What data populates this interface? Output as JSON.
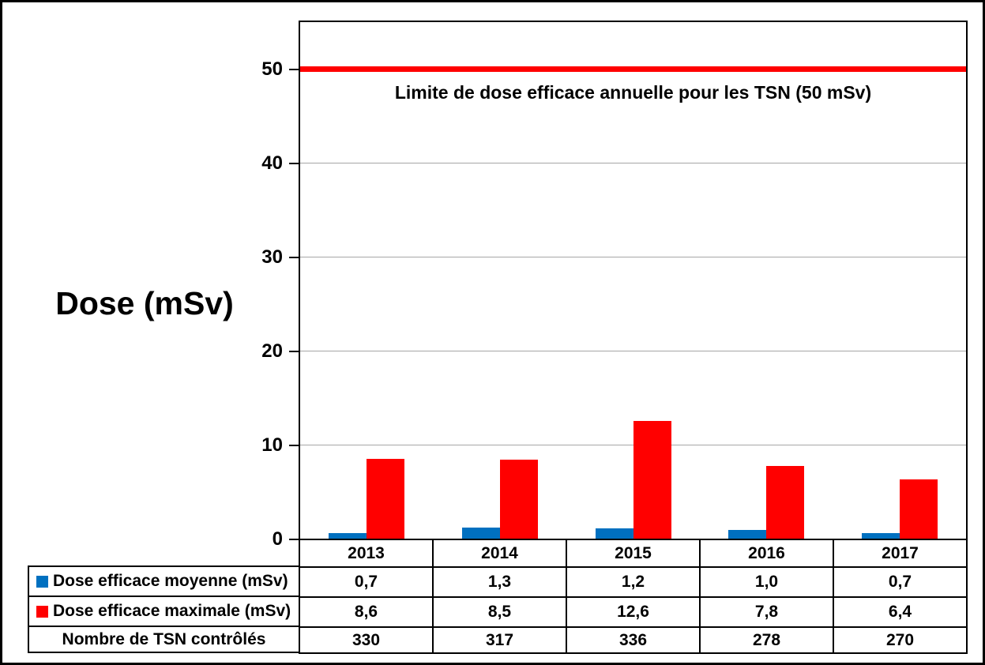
{
  "chart_data": {
    "type": "bar",
    "categories": [
      "2013",
      "2014",
      "2015",
      "2016",
      "2017"
    ],
    "series": [
      {
        "name": "Dose efficace moyenne (mSv)",
        "color": "#0070C0",
        "values": [
          0.7,
          1.3,
          1.2,
          1.0,
          0.7
        ],
        "labels": [
          "0,7",
          "1,3",
          "1,2",
          "1,0",
          "0,7"
        ]
      },
      {
        "name": "Dose efficace maximale (mSv)",
        "color": "#FF0000",
        "values": [
          8.6,
          8.5,
          12.6,
          7.8,
          6.4
        ],
        "labels": [
          "8,6",
          "8,5",
          "12,6",
          "7,8",
          "6,4"
        ]
      }
    ],
    "extra_rows": [
      {
        "name": "Nombre de TSN contrôlés",
        "labels": [
          "330",
          "317",
          "336",
          "278",
          "270"
        ]
      }
    ],
    "ylabel": "Dose (mSv)",
    "yticks": [
      0,
      10,
      20,
      30,
      40,
      50
    ],
    "ylim": [
      0,
      55
    ],
    "grid": true,
    "gridline_color": "#A6A6A6",
    "limit_line": {
      "value": 50,
      "label": "Limite de dose efficace annuelle pour les TSN (50 mSv)",
      "color": "#FF0000"
    },
    "legend_position": "table-left"
  }
}
